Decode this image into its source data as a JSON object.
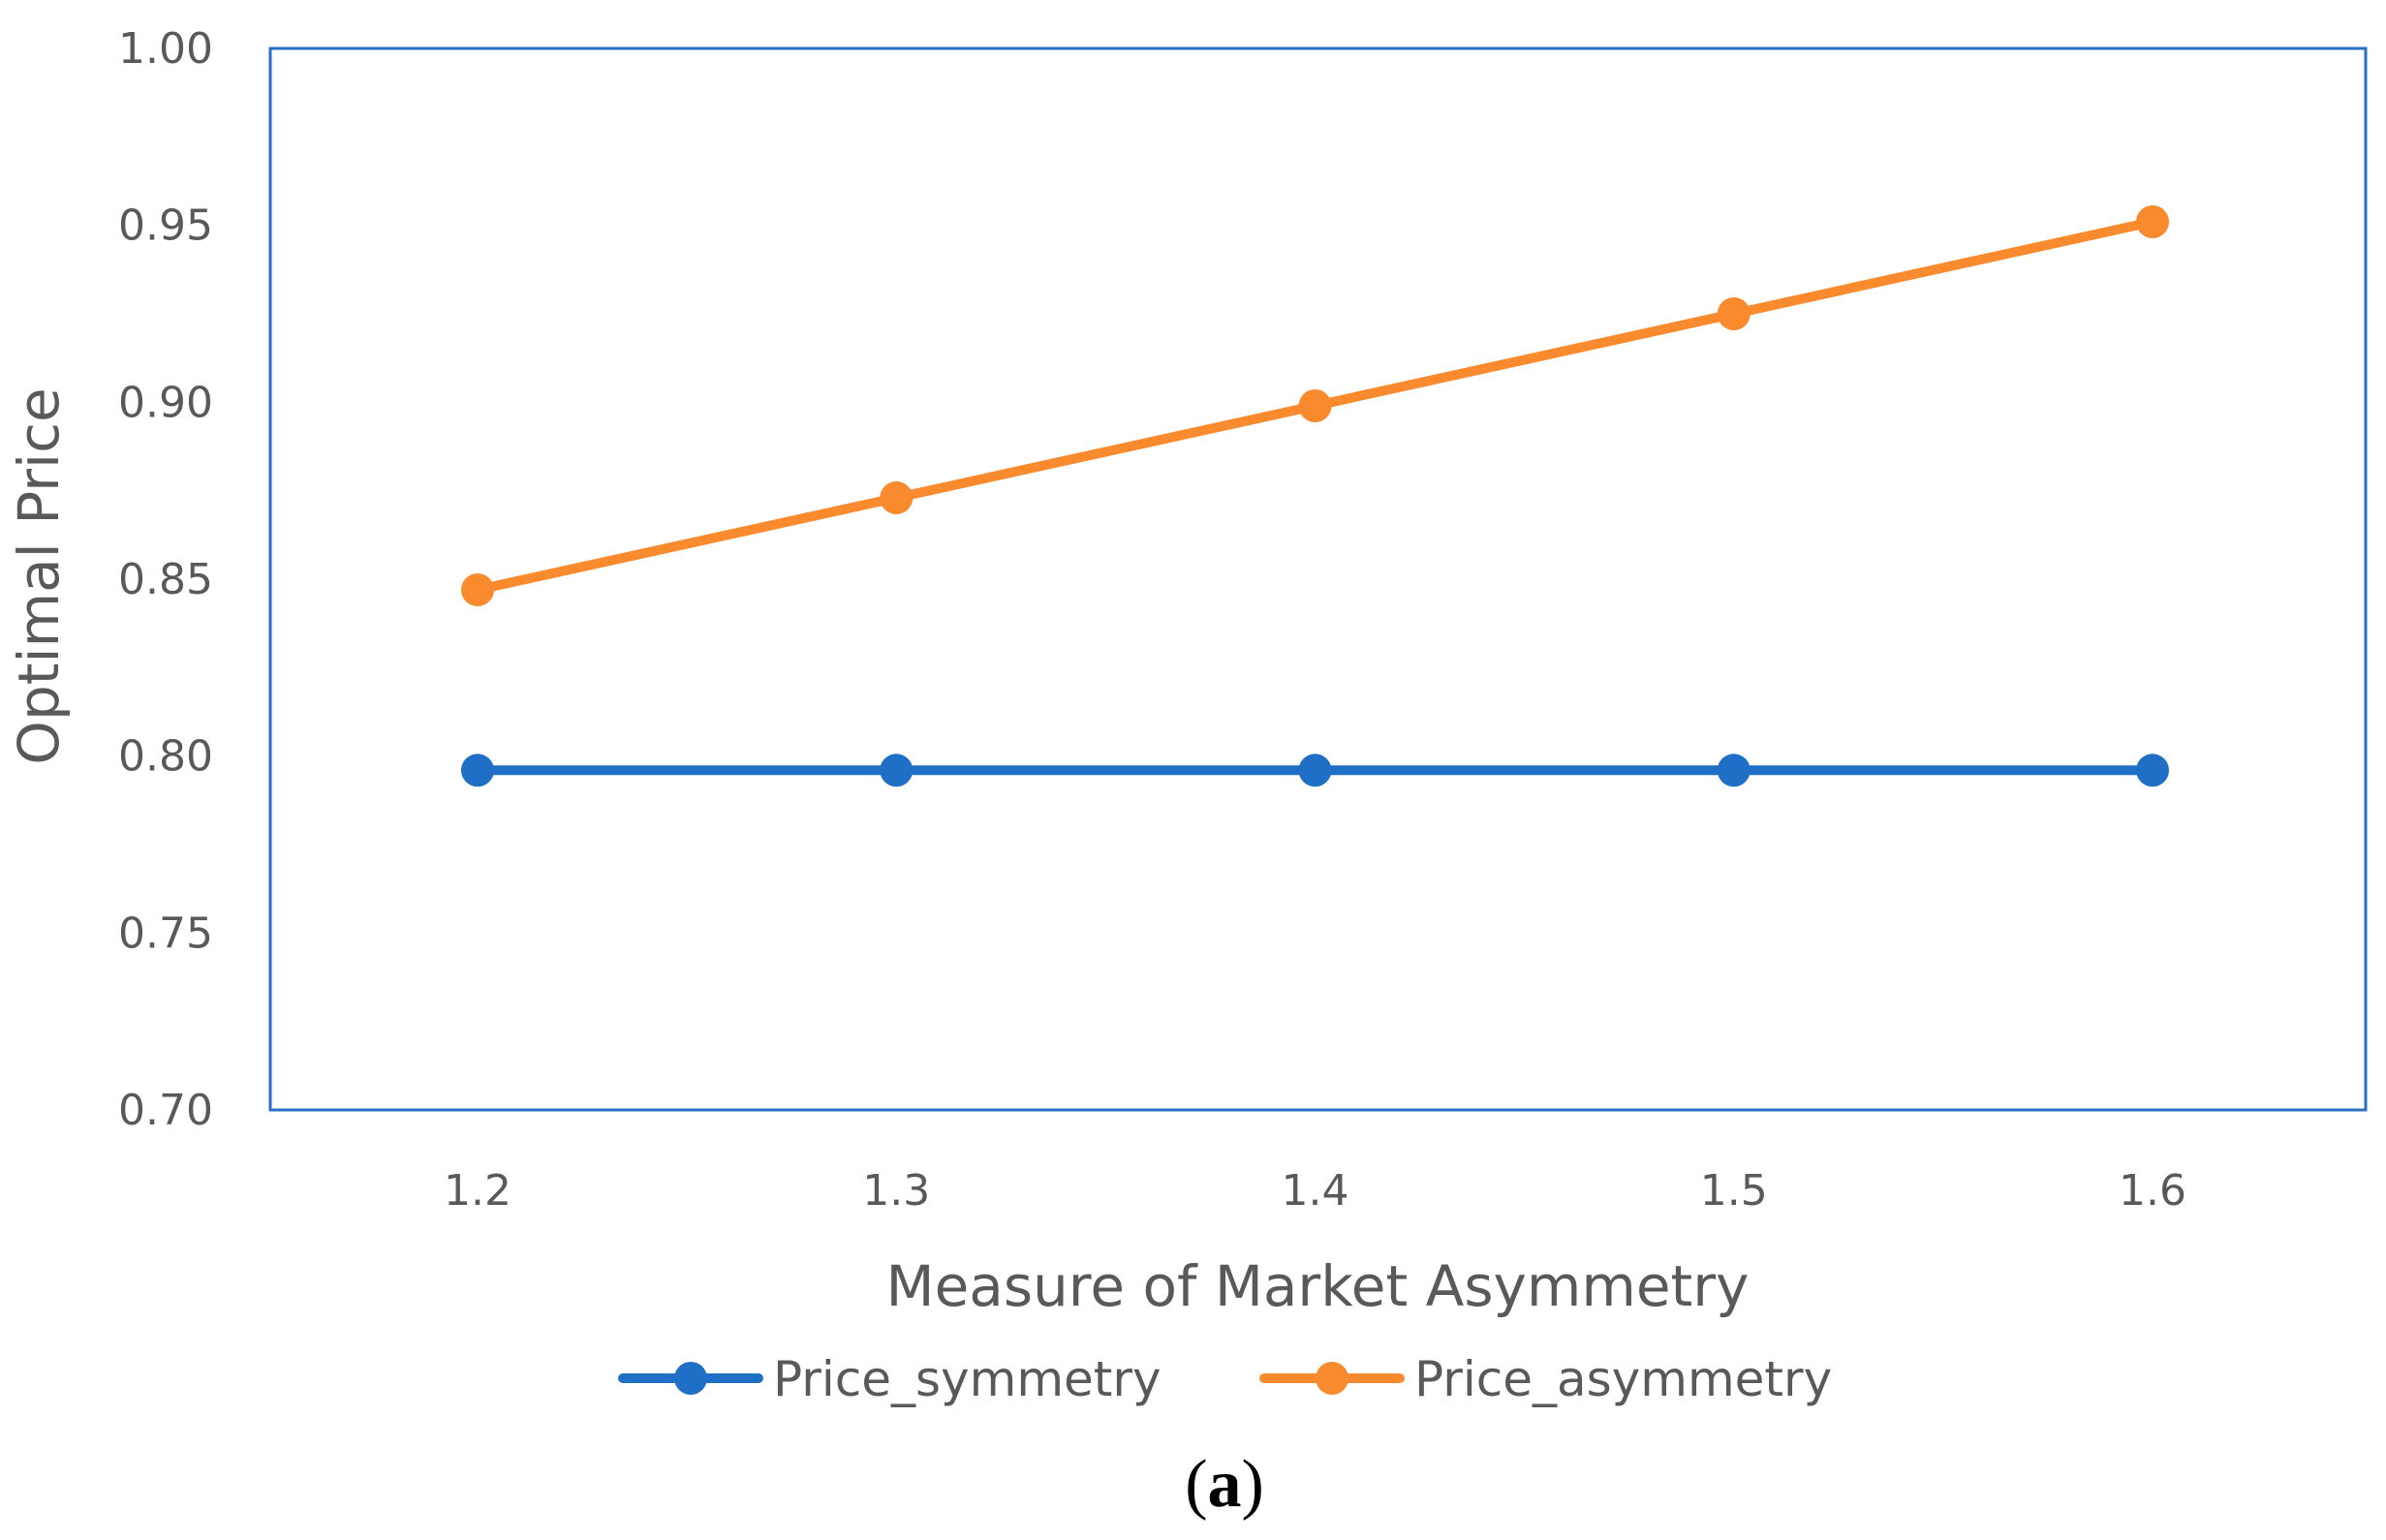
{
  "chart_data": {
    "type": "line",
    "xlabel": "Measure of Market Asymmetry",
    "ylabel": "Optimal Price",
    "x": [
      1.2,
      1.3,
      1.4,
      1.5,
      1.6
    ],
    "x_tick_labels": [
      "1.2",
      "1.3",
      "1.4",
      "1.5",
      "1.6"
    ],
    "ylim": [
      0.7,
      1.0
    ],
    "y_ticks": [
      0.7,
      0.75,
      0.8,
      0.85,
      0.9,
      0.95,
      1.0
    ],
    "y_tick_labels": [
      "0.70",
      "0.75",
      "0.80",
      "0.85",
      "0.90",
      "0.95",
      "1.00"
    ],
    "grid": false,
    "legend_position": "bottom",
    "series": [
      {
        "name": "Price_symmetry",
        "color": "#1f6fc6",
        "values": [
          0.796,
          0.796,
          0.796,
          0.796,
          0.796
        ]
      },
      {
        "name": "Price_asymmetry",
        "color": "#f98a2e",
        "values": [
          0.847,
          0.873,
          0.899,
          0.925,
          0.951
        ]
      }
    ],
    "plot_border_color": "#2a6fc4"
  },
  "caption": {
    "open": "(",
    "letter": "a",
    "close": ")"
  }
}
